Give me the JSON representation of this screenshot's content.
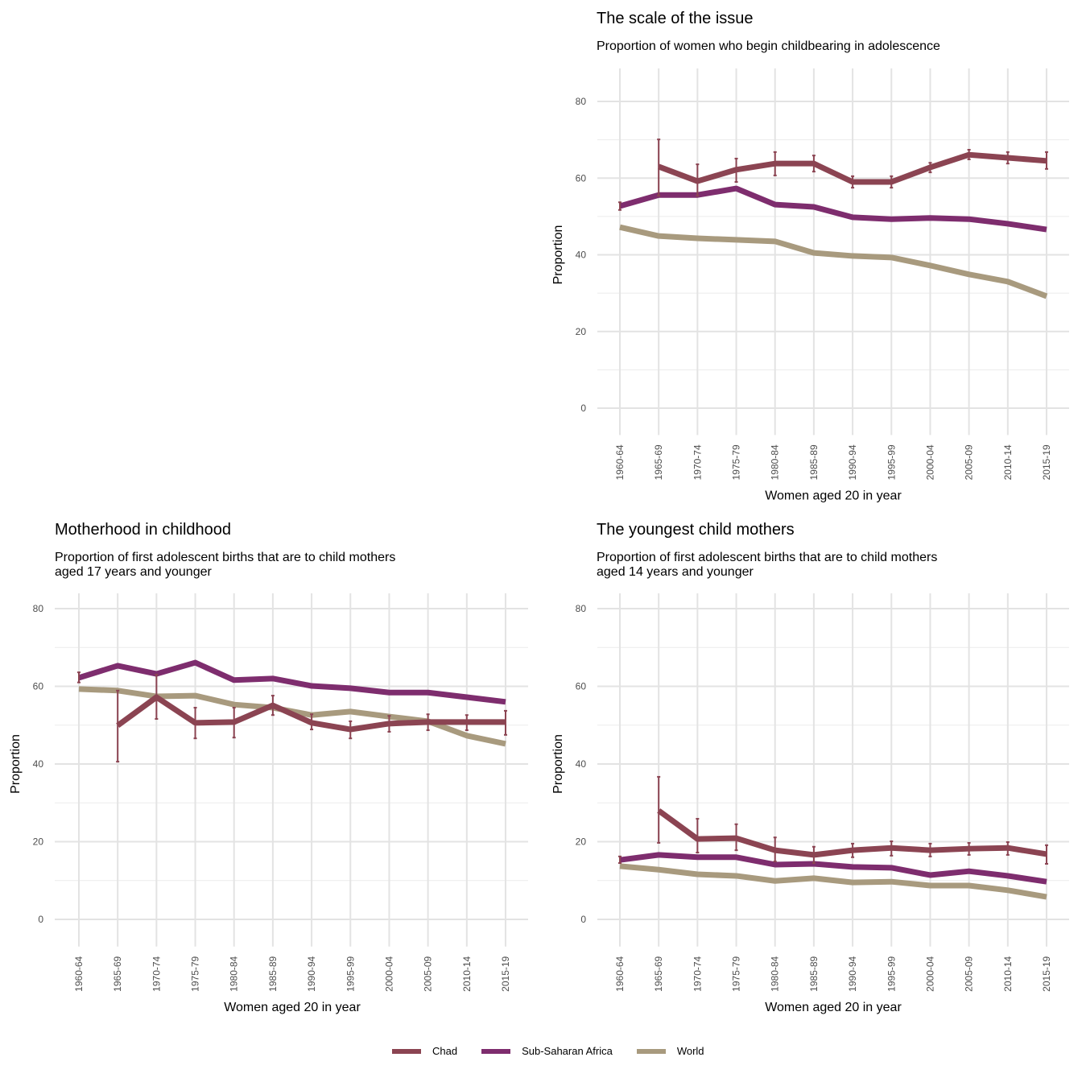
{
  "chart_data": [
    {
      "type": "line",
      "title": "The scale of the issue",
      "subtitle": "Proportion of women who begin childbearing in adolescence",
      "xlabel": "Women aged 20 in year",
      "ylabel": "Proportion",
      "ylim": [
        0,
        85
      ],
      "yticks": [
        0,
        20,
        40,
        60,
        80
      ],
      "categories": [
        "1960-64",
        "1965-69",
        "1970-74",
        "1975-79",
        "1980-84",
        "1985-89",
        "1990-94",
        "1995-99",
        "2000-04",
        "2005-09",
        "2010-14",
        "2015-19"
      ],
      "series": [
        {
          "name": "World",
          "values": [
            47.2,
            44.9,
            44.3,
            43.9,
            43.5,
            40.5,
            39.7,
            39.3,
            37.2,
            34.9,
            33.0,
            29.2
          ]
        },
        {
          "name": "Sub-Saharan Africa",
          "values": [
            52.7,
            55.6,
            55.6,
            57.3,
            53.1,
            52.5,
            49.8,
            49.3,
            49.6,
            49.3,
            48.1,
            46.6
          ],
          "error": [
            [
              51.7,
              53.7
            ],
            null,
            null,
            null,
            null,
            null,
            null,
            null,
            null,
            null,
            null,
            null
          ]
        },
        {
          "name": "Chad",
          "values": [
            null,
            63.0,
            59.2,
            62.2,
            63.8,
            63.8,
            59.0,
            59.0,
            62.8,
            66.1,
            65.3,
            64.5
          ],
          "error": [
            null,
            [
              55.4,
              70.1
            ],
            [
              55.4,
              63.6
            ],
            [
              59.0,
              65.1
            ],
            [
              60.7,
              66.8
            ],
            [
              61.7,
              65.9
            ],
            [
              57.5,
              60.5
            ],
            [
              57.5,
              60.5
            ],
            [
              61.5,
              64.0
            ],
            [
              64.9,
              67.4
            ],
            [
              63.8,
              66.8
            ],
            [
              62.4,
              66.8
            ]
          ]
        }
      ]
    },
    {
      "type": "line",
      "title": "Motherhood in childhood",
      "subtitle": "Proportion of first adolescent births that are to child mothers\naged 17 years and younger",
      "xlabel": "Women aged 20 in year",
      "ylabel": "Proportion",
      "ylim": [
        0,
        85
      ],
      "yticks": [
        0,
        20,
        40,
        60,
        80
      ],
      "categories": [
        "1960-64",
        "1965-69",
        "1970-74",
        "1975-79",
        "1980-84",
        "1985-89",
        "1990-94",
        "1995-99",
        "2000-04",
        "2005-09",
        "2010-14",
        "2015-19"
      ],
      "series": [
        {
          "name": "World",
          "values": [
            59.3,
            58.9,
            57.4,
            57.6,
            55.3,
            54.5,
            52.6,
            53.5,
            52.2,
            51.0,
            47.3,
            45.2
          ]
        },
        {
          "name": "Sub-Saharan Africa",
          "values": [
            62.2,
            65.3,
            63.2,
            66.1,
            61.6,
            62.0,
            60.1,
            59.5,
            58.4,
            58.4,
            57.2,
            56.0
          ],
          "error": [
            [
              61.0,
              63.6
            ],
            null,
            null,
            null,
            null,
            null,
            null,
            null,
            null,
            null,
            null,
            null
          ]
        },
        {
          "name": "Chad",
          "values": [
            null,
            49.9,
            57.2,
            50.6,
            50.8,
            55.1,
            50.6,
            48.9,
            50.4,
            50.8,
            50.8,
            50.8
          ],
          "error": [
            null,
            [
              40.6,
              58.9
            ],
            [
              51.6,
              63.0
            ],
            [
              46.6,
              54.5
            ],
            [
              46.8,
              54.5
            ],
            [
              52.6,
              57.6
            ],
            [
              48.9,
              52.8
            ],
            [
              46.6,
              51.0
            ],
            [
              48.3,
              52.4
            ],
            [
              48.7,
              52.8
            ],
            [
              48.7,
              52.6
            ],
            [
              47.5,
              53.7
            ]
          ]
        }
      ]
    },
    {
      "type": "line",
      "title": "The youngest child mothers",
      "subtitle": "Proportion of first adolescent births that are to child mothers\naged 14 years and younger",
      "xlabel": "Women aged 20 in year",
      "ylabel": "Proportion",
      "ylim": [
        0,
        85
      ],
      "yticks": [
        0,
        20,
        40,
        60,
        80
      ],
      "categories": [
        "1960-64",
        "1965-69",
        "1970-74",
        "1975-79",
        "1980-84",
        "1985-89",
        "1990-94",
        "1995-99",
        "2000-04",
        "2005-09",
        "2010-14",
        "2015-19"
      ],
      "series": [
        {
          "name": "World",
          "values": [
            13.7,
            12.8,
            11.6,
            11.2,
            9.9,
            10.6,
            9.5,
            9.7,
            8.7,
            8.7,
            7.5,
            5.8
          ]
        },
        {
          "name": "Sub-Saharan Africa",
          "values": [
            15.3,
            16.6,
            16.0,
            16.0,
            14.1,
            14.3,
            13.5,
            13.3,
            11.4,
            12.4,
            11.2,
            9.7
          ],
          "error": [
            [
              14.5,
              16.2
            ],
            null,
            null,
            null,
            null,
            null,
            null,
            null,
            null,
            null,
            null,
            null
          ]
        },
        {
          "name": "Chad",
          "values": [
            null,
            28.0,
            20.7,
            20.9,
            17.8,
            16.6,
            17.8,
            18.4,
            17.8,
            18.2,
            18.4,
            16.8
          ],
          "error": [
            null,
            [
              19.7,
              36.7
            ],
            [
              17.2,
              25.9
            ],
            [
              17.8,
              24.5
            ],
            [
              14.9,
              21.1
            ],
            [
              14.5,
              18.7
            ],
            [
              16.0,
              19.5
            ],
            [
              16.4,
              20.1
            ],
            [
              16.2,
              19.5
            ],
            [
              16.6,
              19.7
            ],
            [
              16.6,
              19.9
            ],
            [
              14.3,
              19.1
            ]
          ]
        }
      ]
    }
  ],
  "legend": {
    "items": [
      {
        "name": "Chad",
        "color": "#8B4452"
      },
      {
        "name": "Sub-Saharan Africa",
        "color": "#7E2D6E"
      },
      {
        "name": "World",
        "color": "#A89A7E"
      }
    ],
    "placement": "bottom"
  }
}
